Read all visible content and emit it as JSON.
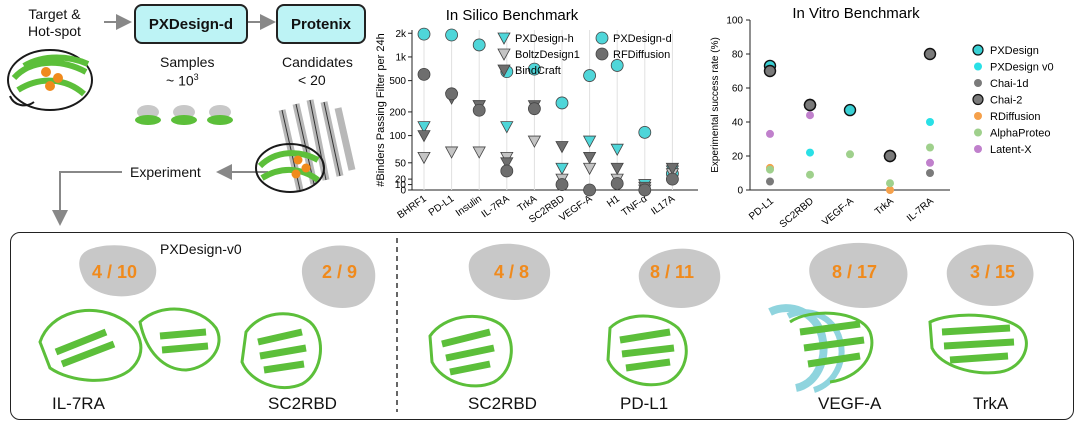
{
  "workflow": {
    "start_label": "Target &\nHot-spot",
    "box1": "PXDesign-d",
    "box2": "Protenix",
    "samples_label": "Samples",
    "samples_value": "~ 10",
    "samples_exp": "3",
    "candidates_label": "Candidates",
    "candidates_value": "< 20",
    "experiment_label": "Experiment"
  },
  "colors": {
    "box_fill": "#bdf3f5",
    "protein_green": "#5cbf3a",
    "target_gray": "#c8c8c8",
    "fraction_orange": "#f08a1c",
    "cyan_marker": "#4fd6d9"
  },
  "chart_data": [
    {
      "type": "scatter",
      "title": "In Silico Benchmark",
      "ylabel": "#Binders Passing Filter per 24h",
      "yscale": "symlog",
      "yticks": [
        "0",
        "10",
        "20",
        "50",
        "100",
        "200",
        "500",
        "1k",
        "2k"
      ],
      "categories": [
        "BHRF1",
        "PD-L1",
        "Insulin",
        "IL-7RA",
        "TrkA",
        "SC2RBD",
        "VEGF-A",
        "H1",
        "TNF-α",
        "IL17A"
      ],
      "legend": [
        "PXDesign-h",
        "BoltzDesign1",
        "BindCraft",
        "PXDesign-d",
        "RFDiffusion"
      ],
      "series": [
        {
          "name": "PXDesign-d",
          "marker": "circle",
          "color": "#4fd6d9",
          "values": [
            1950,
            1900,
            1420,
            650,
            700,
            260,
            580,
            780,
            110,
            30
          ]
        },
        {
          "name": "PXDesign-h",
          "marker": "triangle-down",
          "color": "#4fd6d9",
          "values": [
            130,
            null,
            240,
            130,
            null,
            40,
            90,
            75,
            10,
            35
          ]
        },
        {
          "name": "BoltzDesign1",
          "marker": "triangle-down",
          "color": "#c4c4c4",
          "values": [
            60,
            70,
            70,
            60,
            90,
            20,
            40,
            20,
            0,
            30
          ]
        },
        {
          "name": "BindCraft",
          "marker": "triangle-down",
          "color": "#6e6e6e",
          "values": [
            100,
            300,
            240,
            50,
            240,
            80,
            60,
            40,
            5,
            40
          ]
        },
        {
          "name": "RFDiffusion",
          "marker": "circle",
          "color": "#6e6e6e",
          "values": [
            600,
            340,
            210,
            35,
            220,
            10,
            0,
            12,
            0,
            20
          ]
        }
      ]
    },
    {
      "type": "scatter",
      "title": "In Vitro Benchmark",
      "ylabel": "Experimental success rate (%)",
      "ylim": [
        0,
        100
      ],
      "yticks": [
        0,
        20,
        40,
        60,
        80,
        100
      ],
      "categories": [
        "PD-L1",
        "SC2RBD",
        "VEGF-A",
        "TrkA",
        "IL-7RA"
      ],
      "legend": [
        "PXDesign",
        "PXDesign v0",
        "Chai-1d",
        "Chai-2",
        "RDiffusion",
        "AlphaProteo",
        "Latent-X"
      ],
      "series": [
        {
          "name": "PXDesign",
          "color": "#39d0d4",
          "outline": "#111111",
          "values": [
            73,
            50,
            47,
            20,
            null
          ]
        },
        {
          "name": "PXDesign v0",
          "color": "#29e0e6",
          "values": [
            null,
            22,
            null,
            null,
            40
          ]
        },
        {
          "name": "Chai-1d",
          "color": "#7a7a7a",
          "values": [
            5,
            null,
            null,
            null,
            10
          ]
        },
        {
          "name": "Chai-2",
          "color": "#7a7a7a",
          "outline": "#111111",
          "values": [
            70,
            50,
            null,
            20,
            80
          ]
        },
        {
          "name": "RDiffusion",
          "color": "#f5a04a",
          "values": [
            13,
            null,
            null,
            0,
            null
          ]
        },
        {
          "name": "AlphaProteo",
          "color": "#9fd08c",
          "values": [
            12,
            9,
            21,
            4,
            25
          ]
        },
        {
          "name": "Latent-X",
          "color": "#c080cc",
          "values": [
            33,
            44,
            null,
            null,
            16
          ]
        }
      ]
    }
  ],
  "bottom_panel": {
    "section_label": "PXDesign-v0",
    "items": [
      {
        "target": "IL-7RA",
        "fraction": "4 / 10"
      },
      {
        "target": "SC2RBD",
        "fraction": "2 / 9"
      },
      {
        "target": "SC2RBD",
        "fraction": "4 / 8"
      },
      {
        "target": "PD-L1",
        "fraction": "8 / 11"
      },
      {
        "target": "VEGF-A",
        "fraction": "8 / 17"
      },
      {
        "target": "TrkA",
        "fraction": "3 / 15"
      }
    ]
  }
}
